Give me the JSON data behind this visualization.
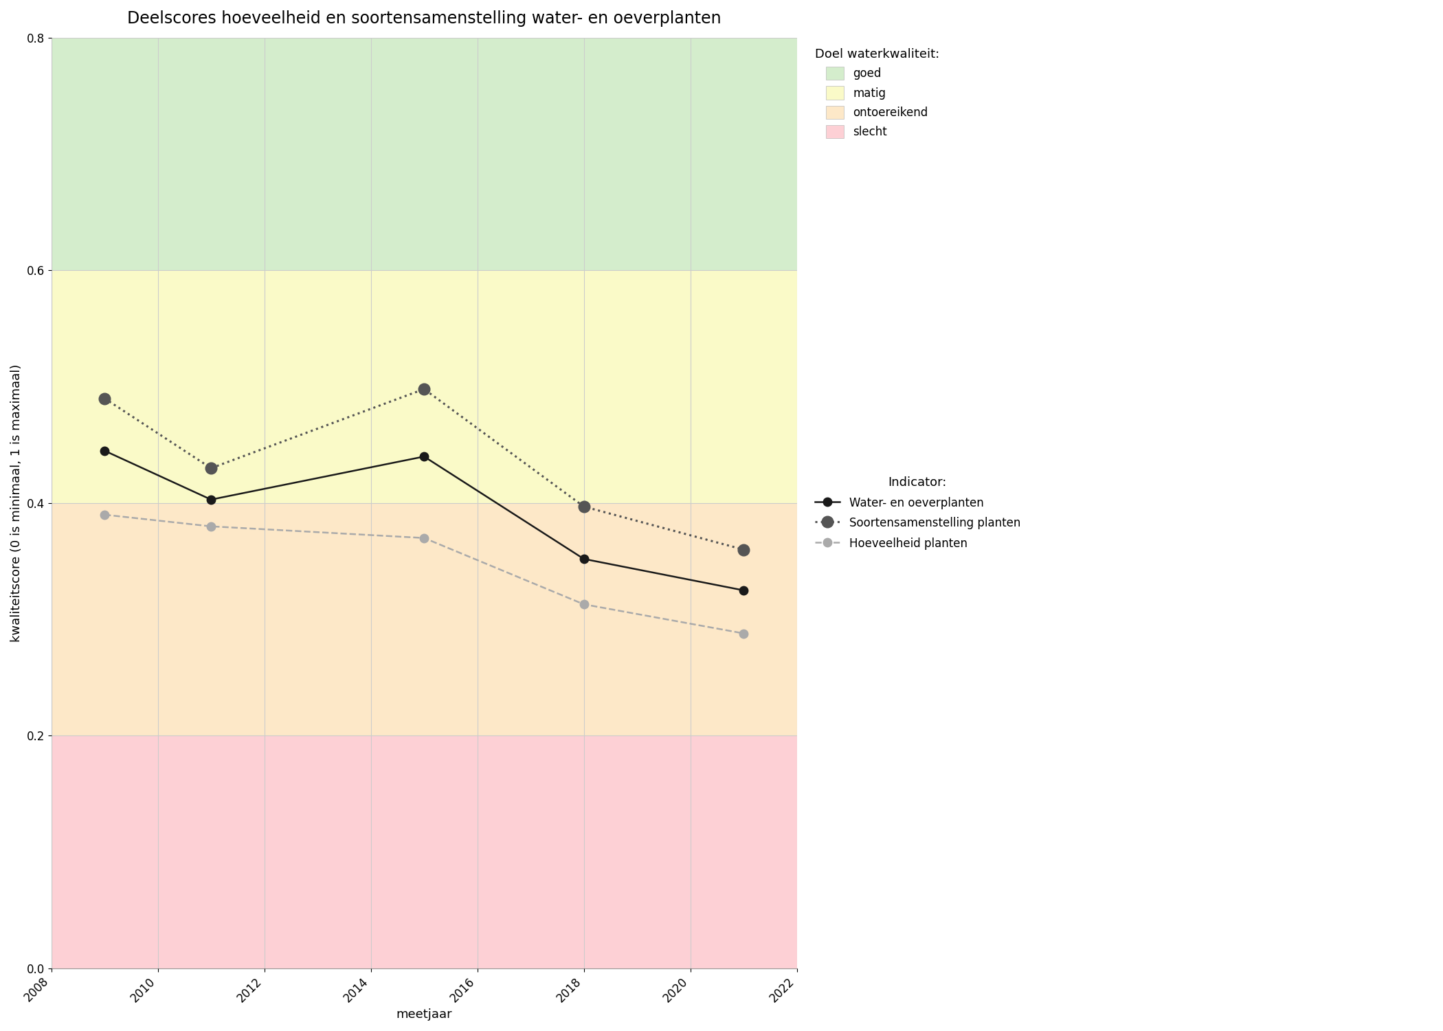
{
  "title": "Deelscores hoeveelheid en soortensamenstelling water- en oeverplanten",
  "xlabel": "meetjaar",
  "ylabel": "kwaliteitscore (0 is minimaal, 1 is maximaal)",
  "xlim": [
    2008,
    2022
  ],
  "ylim": [
    0.0,
    0.8
  ],
  "xticks": [
    2008,
    2010,
    2012,
    2014,
    2016,
    2018,
    2020,
    2022
  ],
  "yticks": [
    0.0,
    0.2,
    0.4,
    0.6,
    0.8
  ],
  "zones": [
    {
      "name": "goed",
      "ymin": 0.6,
      "ymax": 0.8,
      "color": "#d4edcc"
    },
    {
      "name": "matig",
      "ymin": 0.4,
      "ymax": 0.6,
      "color": "#fafac8"
    },
    {
      "name": "ontoereikend",
      "ymin": 0.2,
      "ymax": 0.4,
      "color": "#fde8c8"
    },
    {
      "name": "slecht",
      "ymin": 0.0,
      "ymax": 0.2,
      "color": "#fdd0d5"
    }
  ],
  "series": [
    {
      "key": "water_oever",
      "years": [
        2009,
        2011,
        2015,
        2018,
        2021
      ],
      "values": [
        0.445,
        0.403,
        0.44,
        0.352,
        0.325
      ],
      "color": "#1a1a1a",
      "linestyle": "solid",
      "linewidth": 1.8,
      "marker": "o",
      "markersize": 9,
      "markerfacecolor": "#1a1a1a",
      "markeredgecolor": "#1a1a1a",
      "label": "Water- en oeverplanten"
    },
    {
      "key": "soortensamenstelling",
      "years": [
        2009,
        2011,
        2015,
        2018,
        2021
      ],
      "values": [
        0.49,
        0.43,
        0.498,
        0.397,
        0.36
      ],
      "color": "#555555",
      "linestyle": "dotted",
      "linewidth": 2.2,
      "marker": "o",
      "markersize": 12,
      "markerfacecolor": "#555555",
      "markeredgecolor": "#555555",
      "label": "Soortensamenstelling planten"
    },
    {
      "key": "hoeveelheid",
      "years": [
        2009,
        2011,
        2015,
        2018,
        2021
      ],
      "values": [
        0.39,
        0.38,
        0.37,
        0.313,
        0.288
      ],
      "color": "#aaaaaa",
      "linestyle": "dashed",
      "linewidth": 1.8,
      "marker": "o",
      "markersize": 9,
      "markerfacecolor": "#aaaaaa",
      "markeredgecolor": "#aaaaaa",
      "label": "Hoeveelheid planten"
    }
  ],
  "legend1_title": "Doel waterkwaliteit:",
  "legend2_title": "Indicator:",
  "grid_color": "#cccccc",
  "grid_linewidth": 0.8,
  "title_fontsize": 17,
  "label_fontsize": 13,
  "tick_fontsize": 12,
  "legend_fontsize": 12,
  "legend_title_fontsize": 13
}
